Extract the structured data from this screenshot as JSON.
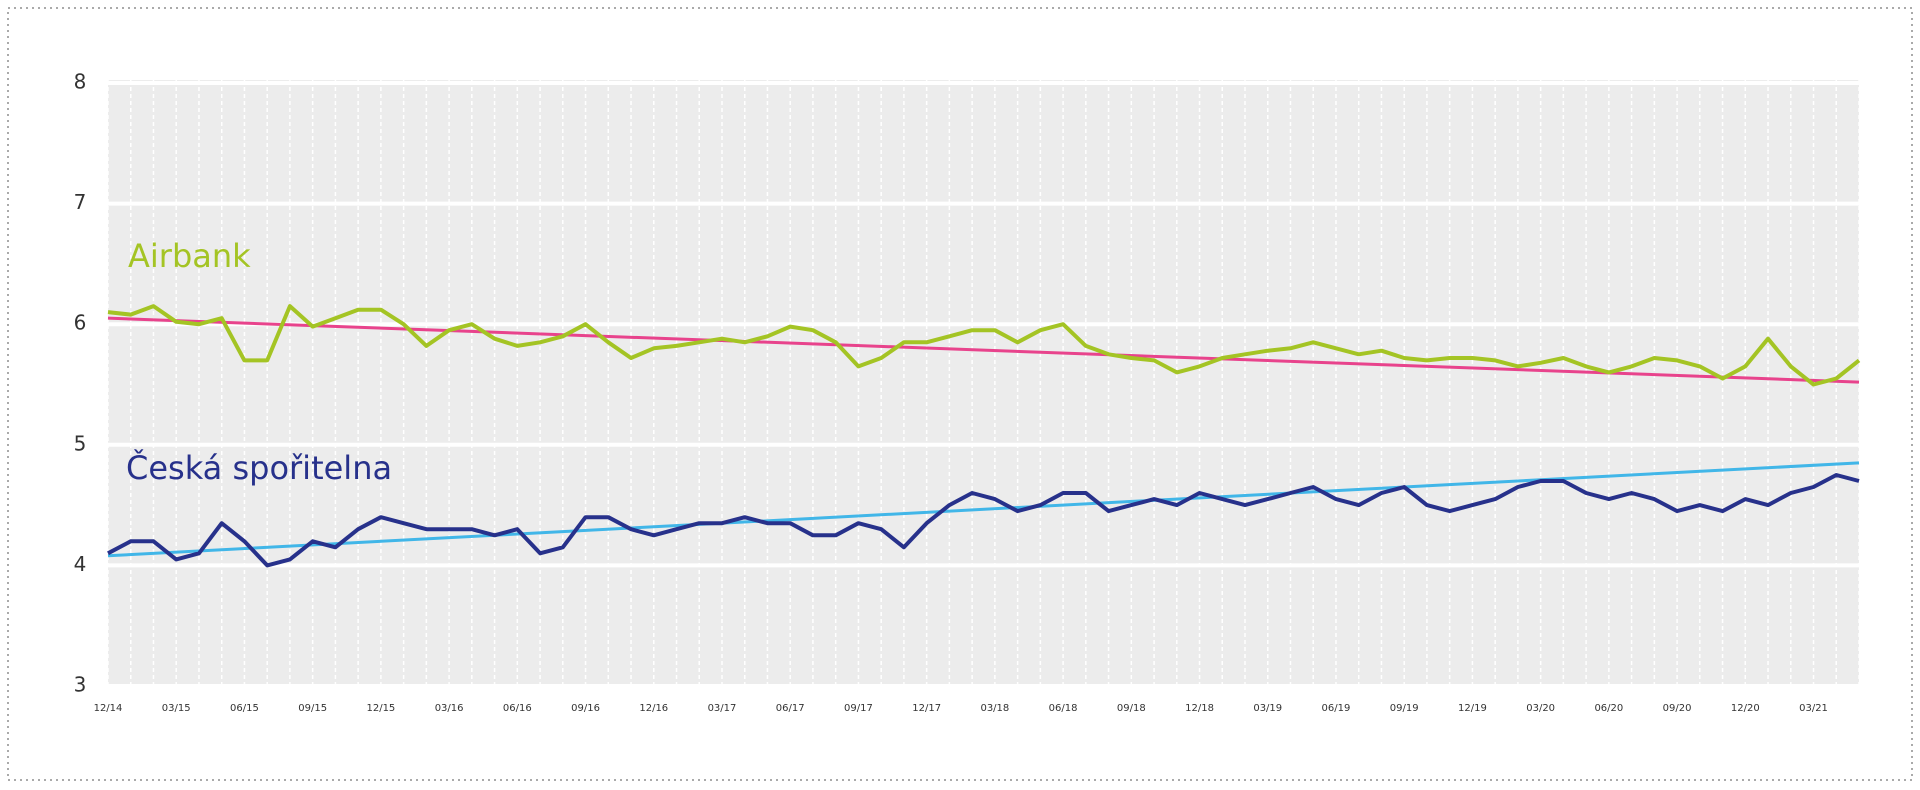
{
  "chart_data": {
    "type": "line",
    "categories": [
      "12/14",
      null,
      null,
      "03/15",
      null,
      null,
      "06/15",
      null,
      null,
      "09/15",
      null,
      null,
      "12/15",
      null,
      null,
      "03/16",
      null,
      null,
      "06/16",
      null,
      null,
      "09/16",
      null,
      null,
      "12/16",
      null,
      null,
      "03/17",
      null,
      null,
      "06/17",
      null,
      null,
      "09/17",
      null,
      null,
      "12/17",
      null,
      null,
      "03/18",
      null,
      null,
      "06/18",
      null,
      null,
      "09/18",
      null,
      null,
      "12/18",
      null,
      null,
      "03/19",
      null,
      null,
      "06/19",
      null,
      null,
      "09/19",
      null,
      null,
      "12/19",
      null,
      null,
      "03/20",
      null,
      null,
      "06/20",
      null,
      null,
      "09/20",
      null,
      null,
      "12/20",
      null,
      null,
      "03/21",
      null,
      null
    ],
    "series": [
      {
        "name": "Airbank",
        "color": "#a4c424",
        "values": [
          6.1,
          6.08,
          6.15,
          6.02,
          6.0,
          6.05,
          5.7,
          5.7,
          6.15,
          5.98,
          6.05,
          6.12,
          6.12,
          6.0,
          5.82,
          5.95,
          6.0,
          5.88,
          5.82,
          5.85,
          5.9,
          6.0,
          5.85,
          5.72,
          5.8,
          5.82,
          5.85,
          5.88,
          5.85,
          5.9,
          5.98,
          5.95,
          5.85,
          5.65,
          5.72,
          5.85,
          5.85,
          5.9,
          5.95,
          5.95,
          5.85,
          5.95,
          6.0,
          5.82,
          5.75,
          5.72,
          5.7,
          5.6,
          5.65,
          5.72,
          5.75,
          5.78,
          5.8,
          5.85,
          5.8,
          5.75,
          5.78,
          5.72,
          5.7,
          5.72,
          5.72,
          5.7,
          5.65,
          5.68,
          5.72,
          5.65,
          5.6,
          5.65,
          5.72,
          5.7,
          5.65,
          5.55,
          5.65,
          5.88,
          5.65,
          5.5,
          5.55,
          5.7
        ]
      },
      {
        "name": "Česká spořitelna",
        "color": "#27318b",
        "values": [
          4.1,
          4.2,
          4.2,
          4.05,
          4.1,
          4.35,
          4.2,
          4.0,
          4.05,
          4.2,
          4.15,
          4.3,
          4.4,
          4.35,
          4.3,
          4.3,
          4.3,
          4.25,
          4.3,
          4.1,
          4.15,
          4.4,
          4.4,
          4.3,
          4.25,
          4.3,
          4.35,
          4.35,
          4.4,
          4.35,
          4.35,
          4.25,
          4.25,
          4.35,
          4.3,
          4.15,
          4.35,
          4.5,
          4.6,
          4.55,
          4.45,
          4.5,
          4.6,
          4.6,
          4.45,
          4.5,
          4.55,
          4.5,
          4.6,
          4.55,
          4.5,
          4.55,
          4.6,
          4.65,
          4.55,
          4.5,
          4.6,
          4.65,
          4.5,
          4.45,
          4.5,
          4.55,
          4.65,
          4.7,
          4.7,
          4.6,
          4.55,
          4.6,
          4.55,
          4.45,
          4.5,
          4.45,
          4.55,
          4.5,
          4.6,
          4.65,
          4.75,
          4.7
        ]
      }
    ],
    "trend_lines": [
      {
        "color": "#e8438c",
        "start": 6.05,
        "end": 5.52
      },
      {
        "color": "#41b6e8",
        "start": 4.08,
        "end": 4.85
      }
    ],
    "ylim": [
      3,
      8
    ],
    "yticks": [
      3,
      4,
      5,
      6,
      7,
      8
    ],
    "grid": true
  }
}
